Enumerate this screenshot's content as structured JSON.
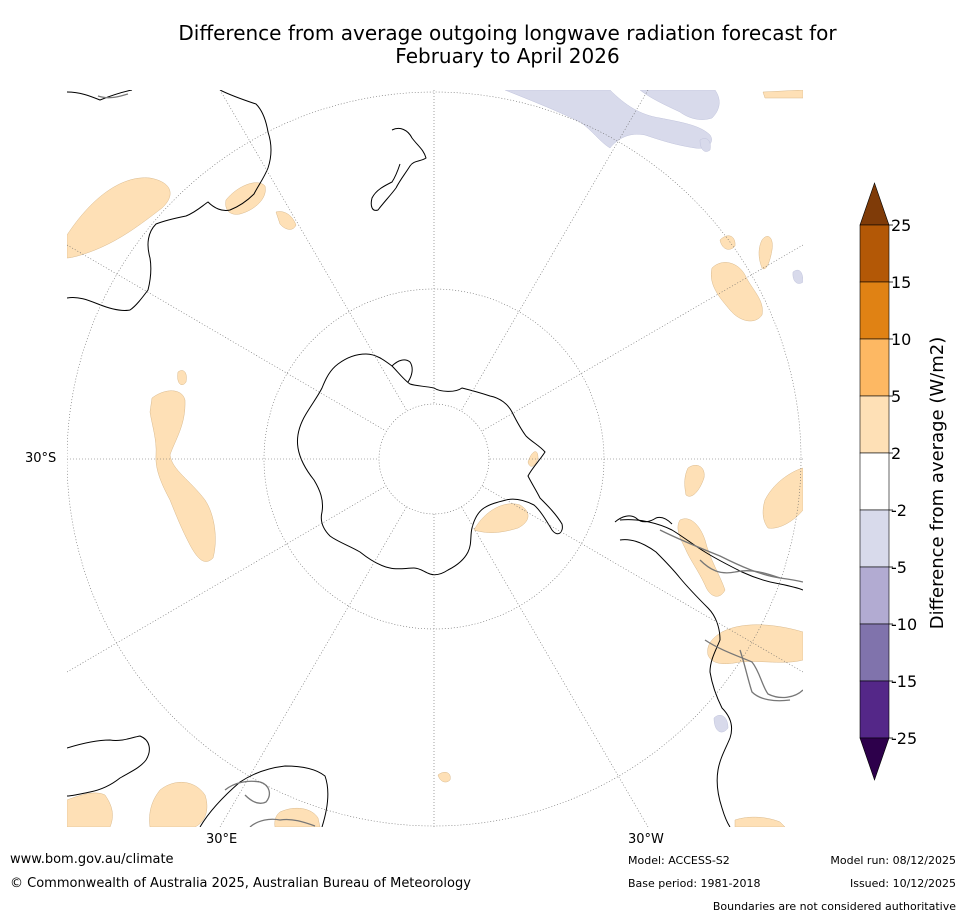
{
  "title_line1": "Difference from average outgoing longwave radiation forecast for",
  "title_line2": "February to April 2026",
  "axis_labels": {
    "lat_30s": "30°S",
    "lon_30e": "30°E",
    "lon_30w": "30°W"
  },
  "colorbar": {
    "label": "Difference from average (W/m2)",
    "ticks": [
      "25",
      "15",
      "10",
      "5",
      "2",
      "-2",
      "-5",
      "-10",
      "-15",
      "-25"
    ],
    "colors": {
      "over": "#7f3b08",
      "b15_25": "#b35806",
      "b10_15": "#e08214",
      "b5_10": "#fdb863",
      "b2_5": "#fee0b6",
      "bm2_2": "#ffffff",
      "bm5_m2": "#d8daeb",
      "bm10_m5": "#b2abd2",
      "bm15_m10": "#8073ac",
      "bm25_m15": "#542788",
      "under": "#2d004b"
    }
  },
  "footer": {
    "website": "www.bom.gov.au/climate",
    "copyright": "© Commonwealth of Australia 2025, Australian Bureau of Meteorology",
    "model": "Model: ACCESS-S2",
    "base_period": "Base period: 1981-2018",
    "model_run": "Model run: 08/12/2025",
    "issued": "Issued: 10/12/2025",
    "disclaimer": "Boundaries are not considered authoritative"
  }
}
